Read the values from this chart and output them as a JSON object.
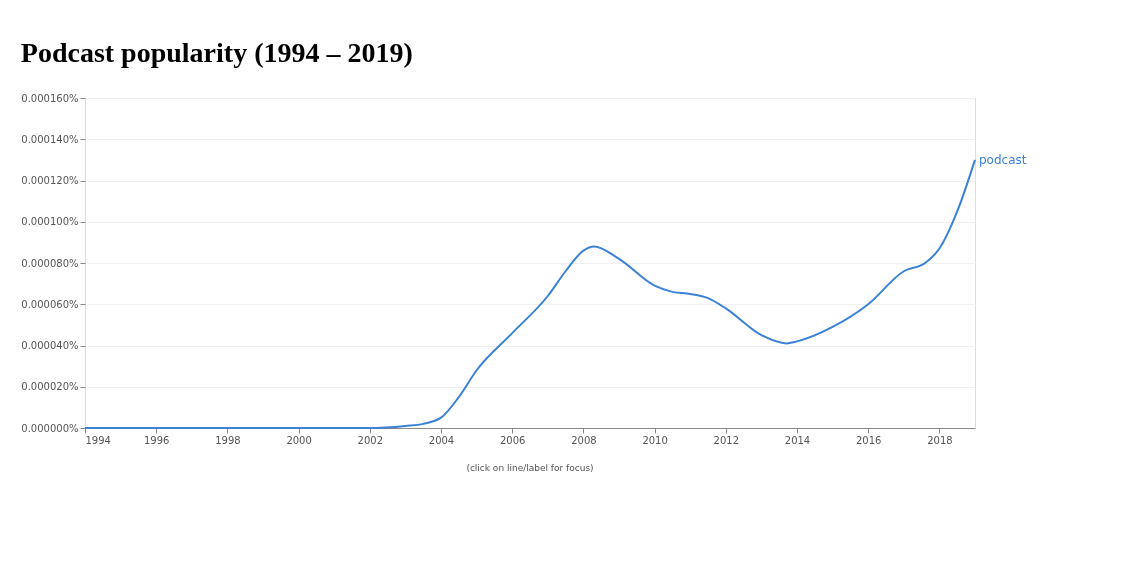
{
  "chart_data": {
    "type": "line",
    "title": "Podcast popularity (1994 – 2019)",
    "annotations": [
      "(click on line/label for focus)"
    ],
    "series": [
      {
        "name": "podcast",
        "color": "#3b82d6",
        "x": [
          1994,
          1996,
          1998,
          2000,
          2002,
          2003,
          2003.5,
          2004,
          2004.5,
          2005,
          2006,
          2007,
          2007.5,
          2008,
          2008.3,
          2009,
          2010,
          2010.5,
          2011,
          2011.5,
          2012,
          2013,
          2013.7,
          2014,
          2015,
          2016,
          2017,
          2017.6,
          2018,
          2018.5,
          2019
        ],
        "values": [
          0,
          0,
          0,
          0,
          0,
          1e-06,
          2e-06,
          5e-06,
          1.5e-05,
          2.8e-05,
          4.6e-05,
          6.4e-05,
          7.6e-05,
          8.6e-05,
          8.8e-05,
          8.2e-05,
          6.9e-05,
          6.6e-05,
          6.5e-05,
          6.3e-05,
          5.8e-05,
          4.5e-05,
          4.1e-05,
          4.2e-05,
          4.9e-05,
          6e-05,
          7.6e-05,
          8e-05,
          8.7e-05,
          0.000105,
          0.00013
        ]
      }
    ],
    "xlim": [
      1994,
      2019
    ],
    "xticks": [
      1994,
      1996,
      1998,
      2000,
      2002,
      2004,
      2006,
      2008,
      2010,
      2012,
      2014,
      2016,
      2018
    ],
    "ylim": [
      0,
      0.00016
    ],
    "yticks": [
      {
        "value": 0,
        "label": "0.000000%"
      },
      {
        "value": 2e-05,
        "label": "0.000020%"
      },
      {
        "value": 4e-05,
        "label": "0.000040%"
      },
      {
        "value": 6e-05,
        "label": "0.000060%"
      },
      {
        "value": 8e-05,
        "label": "0.000080%"
      },
      {
        "value": 0.0001,
        "label": "0.000100%"
      },
      {
        "value": 0.00012,
        "label": "0.000120%"
      },
      {
        "value": 0.00014,
        "label": "0.000140%"
      },
      {
        "value": 0.00016,
        "label": "0.000160%"
      }
    ],
    "grid": "y",
    "marker": "none",
    "line_style": "solid"
  }
}
